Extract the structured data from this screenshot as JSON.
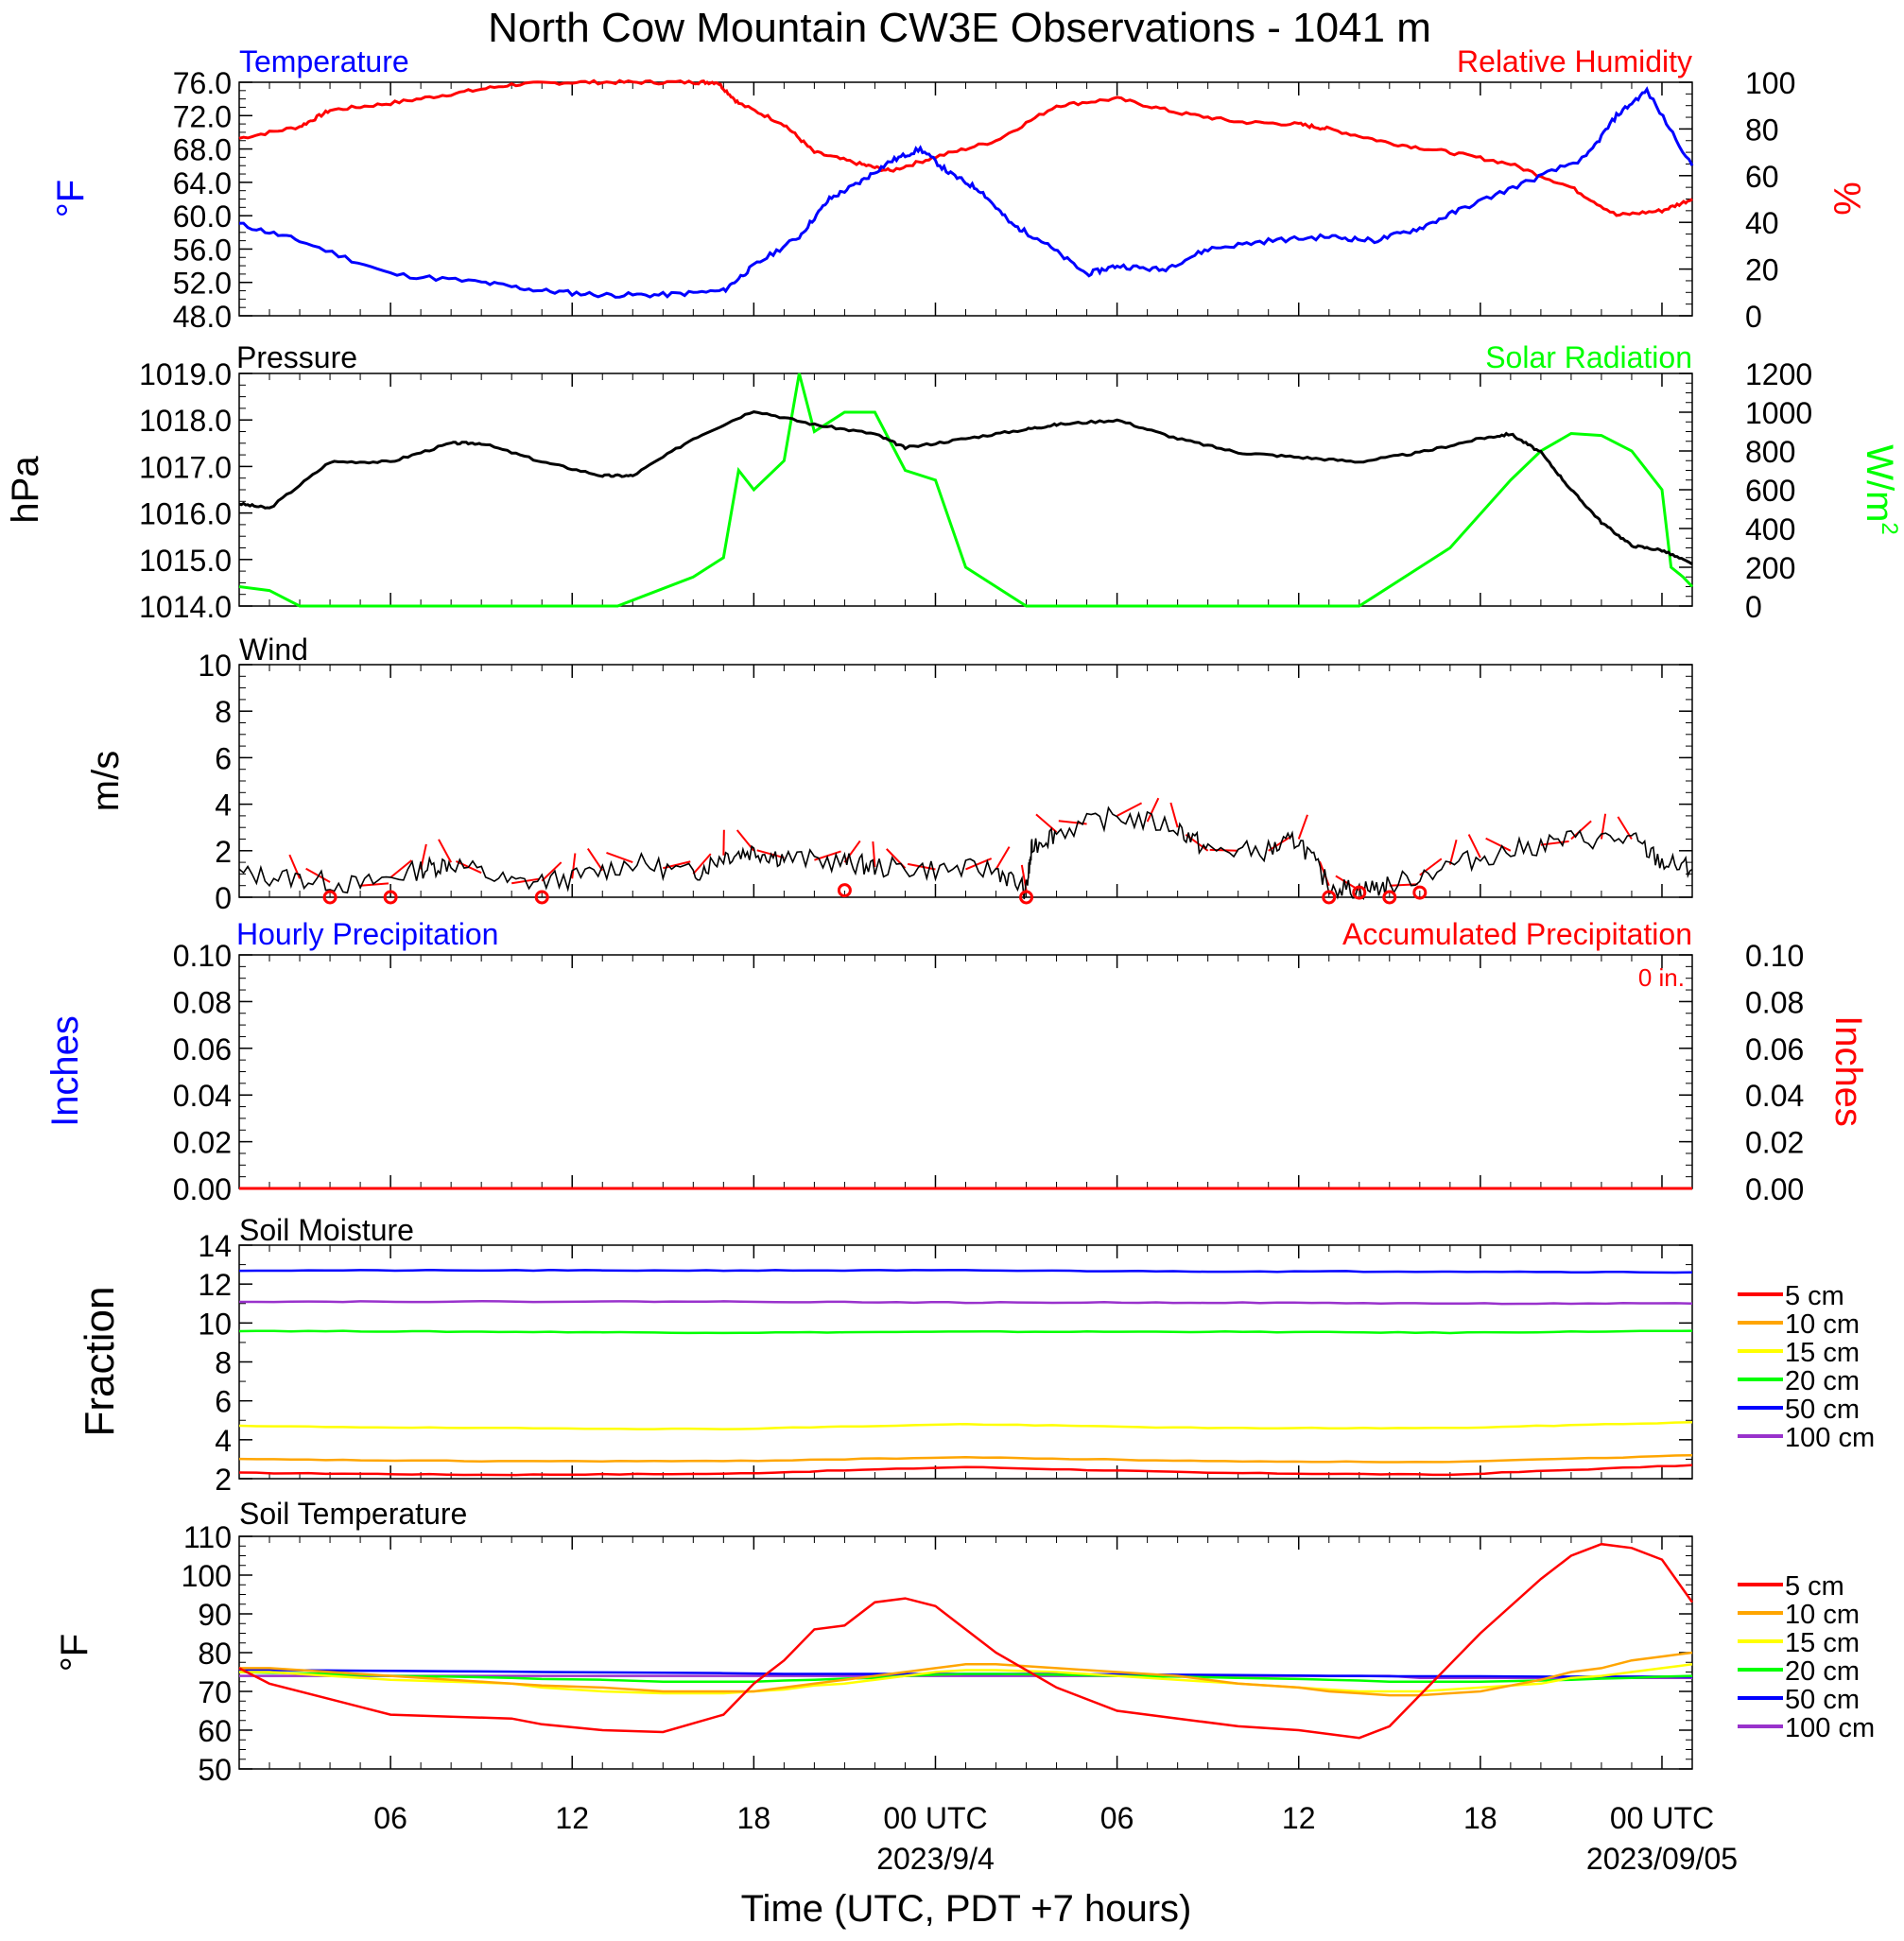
{
  "title": "North Cow Mountain CW3E Observations - 1041 m",
  "x_axis": {
    "label": "Time (UTC, PDT +7 hours)",
    "ticks": [
      "06",
      "12",
      "18",
      "00 UTC",
      "06",
      "12",
      "18",
      "00 UTC"
    ],
    "tick_hours": [
      6,
      12,
      18,
      24,
      30,
      36,
      42,
      48
    ],
    "dates": [
      "2023/9/4",
      "2023/09/05"
    ],
    "date_hours": [
      24,
      48
    ],
    "range_hours": [
      1,
      49
    ]
  },
  "panels": {
    "temp_rh": {
      "left_title": "Temperature",
      "right_title": "Relative Humidity",
      "left_unit": "°F",
      "right_unit": "%",
      "left_ticks": [
        "76.0",
        "72.0",
        "68.0",
        "64.0",
        "60.0",
        "56.0",
        "52.0",
        "48.0"
      ],
      "right_ticks": [
        "100",
        "80",
        "60",
        "40",
        "20",
        "0"
      ]
    },
    "pressure_solar": {
      "left_title": "Pressure",
      "right_title": "Solar Radiation",
      "left_unit": "hPa",
      "right_unit": "W/m",
      "right_unit_sup": "2",
      "left_ticks": [
        "1019.0",
        "1018.0",
        "1017.0",
        "1016.0",
        "1015.0",
        "1014.0"
      ],
      "right_ticks": [
        "1200",
        "1000",
        "800",
        "600",
        "400",
        "200",
        "0"
      ]
    },
    "wind": {
      "title": "Wind",
      "unit": "m/s",
      "ticks": [
        "10",
        "8",
        "6",
        "4",
        "2",
        "0"
      ]
    },
    "precip": {
      "left_title": "Hourly Precipitation",
      "right_title": "Accumulated Precipitation",
      "accum_label": "0 in.",
      "left_unit": "Inches",
      "right_unit": "Inches",
      "left_ticks": [
        "0.10",
        "0.08",
        "0.06",
        "0.04",
        "0.02",
        "0.00"
      ],
      "right_ticks": [
        "0.10",
        "0.08",
        "0.06",
        "0.04",
        "0.02",
        "0.00"
      ]
    },
    "soil_moisture": {
      "title": "Soil Moisture",
      "unit": "Fraction",
      "ticks": [
        "14",
        "12",
        "10",
        "8",
        "6",
        "4",
        "2"
      ],
      "legend": [
        "5 cm",
        "10 cm",
        "15 cm",
        "20 cm",
        "50 cm",
        "100 cm"
      ]
    },
    "soil_temp": {
      "title": "Soil Temperature",
      "unit": "°F",
      "ticks": [
        "110",
        "100",
        "90",
        "80",
        "70",
        "60",
        "50"
      ],
      "legend": [
        "5 cm",
        "10 cm",
        "15 cm",
        "20 cm",
        "50 cm",
        "100 cm"
      ]
    }
  },
  "colors": {
    "temperature": "#0000ff",
    "humidity": "#ff0000",
    "pressure": "#000000",
    "solar": "#00ff00",
    "wind_speed": "#000000",
    "wind_barb": "#ff0000",
    "hourly_precip": "#0000ff",
    "accum_precip": "#ff0000",
    "depth_5": "#ff0000",
    "depth_10": "#ffa500",
    "depth_15": "#ffff00",
    "depth_20": "#00ff00",
    "depth_50": "#0000ff",
    "depth_100": "#9932cc"
  },
  "chart_data": [
    {
      "type": "line",
      "name": "Temperature",
      "x_hours": [
        1,
        3,
        6,
        9,
        11,
        13,
        15,
        17,
        18,
        19.5,
        20.5,
        21.5,
        22.5,
        23.5,
        24.5,
        25.5,
        26.5,
        27.5,
        29,
        30,
        31.5,
        33,
        35,
        37,
        38.5,
        40,
        41.5,
        43.5,
        45.5,
        46.5,
        47.5,
        49
      ],
      "y": [
        59,
        57,
        53,
        52,
        51,
        50.5,
        50.5,
        51,
        54,
        57.5,
        62,
        64,
        66.5,
        68,
        65,
        63,
        59,
        57,
        53,
        54,
        53.5,
        56,
        57,
        57.5,
        57,
        58.5,
        61,
        64,
        67,
        72,
        75,
        66
      ],
      "ylim": [
        48,
        76
      ]
    },
    {
      "type": "line",
      "name": "Relative Humidity",
      "x_hours": [
        1,
        3,
        4,
        6,
        8,
        10,
        12,
        14,
        16,
        16.8,
        17.5,
        19,
        20,
        21.5,
        22.5,
        24,
        26,
        28,
        30,
        32,
        34,
        36,
        37,
        39,
        41,
        43,
        45,
        46.5,
        48,
        49
      ],
      "y": [
        76,
        81,
        88,
        91,
        95,
        99,
        100,
        100,
        100,
        100,
        91,
        82,
        70,
        65,
        62,
        68,
        75,
        90,
        93,
        87,
        83,
        82,
        80,
        74,
        70,
        65,
        55,
        43,
        45,
        50
      ],
      "ylim": [
        0,
        100
      ]
    },
    {
      "type": "line",
      "name": "Pressure",
      "x_hours": [
        1,
        2,
        4,
        6,
        8,
        9,
        11,
        13,
        14,
        16,
        18,
        20,
        22,
        23,
        25,
        27,
        28,
        30,
        32,
        34,
        36,
        38,
        40,
        42,
        43,
        44,
        45,
        46,
        47,
        48,
        49
      ],
      "y": [
        1016.2,
        1016.1,
        1017.1,
        1017.1,
        1017.5,
        1017.5,
        1017.1,
        1016.8,
        1016.8,
        1017.6,
        1018.2,
        1017.9,
        1017.7,
        1017.4,
        1017.6,
        1017.8,
        1017.9,
        1018.0,
        1017.6,
        1017.3,
        1017.2,
        1017.1,
        1017.3,
        1017.6,
        1017.7,
        1017.3,
        1016.5,
        1015.8,
        1015.3,
        1015.2,
        1014.9
      ],
      "ylim": [
        1014,
        1019
      ]
    },
    {
      "type": "line",
      "name": "Solar Radiation",
      "x_hours": [
        1,
        2,
        3,
        13.5,
        14.5,
        16,
        17,
        17.5,
        18,
        19,
        19.5,
        20,
        21,
        22,
        23,
        24,
        25,
        26,
        27,
        28.5,
        38,
        38.5,
        41,
        43,
        44,
        45,
        46,
        47,
        48,
        48.3,
        48.7,
        49
      ],
      "y": [
        100,
        80,
        0,
        0,
        60,
        150,
        250,
        700,
        600,
        750,
        1200,
        900,
        1000,
        1000,
        700,
        650,
        200,
        100,
        0,
        0,
        0,
        50,
        300,
        650,
        800,
        890,
        880,
        800,
        600,
        200,
        150,
        100
      ],
      "ylim": [
        0,
        1200
      ]
    },
    {
      "type": "line",
      "name": "Wind",
      "x_hours": [
        1,
        3,
        5,
        7,
        8,
        10,
        12,
        14,
        16,
        17,
        18,
        19,
        21,
        22,
        24,
        26,
        27,
        27.2,
        28,
        30,
        32,
        33,
        35,
        36,
        37,
        38,
        39,
        41,
        43,
        45,
        47,
        48,
        49
      ],
      "y": [
        1.0,
        0.8,
        0.5,
        1.2,
        1.5,
        0.6,
        0.8,
        1.5,
        1.0,
        1.8,
        2.0,
        1.7,
        1.5,
        1.3,
        1.2,
        1.2,
        0.3,
        2.2,
        2.8,
        3.5,
        3.0,
        2.0,
        2.0,
        2.5,
        0.5,
        0.3,
        0.5,
        1.4,
        2.0,
        2.5,
        2.5,
        1.5,
        1.2
      ],
      "ylim": [
        0,
        10
      ]
    },
    {
      "type": "scatter",
      "name": "Calm wind markers",
      "x_hours": [
        4,
        6,
        11,
        21,
        27,
        37,
        38,
        39,
        40
      ],
      "y": [
        0,
        0,
        0,
        0.3,
        0,
        0,
        0.2,
        0,
        0.2
      ],
      "ylim": [
        0,
        10
      ]
    },
    {
      "type": "bar",
      "name": "Hourly Precipitation",
      "x_hours": [
        1,
        49
      ],
      "y": [
        0,
        0
      ],
      "ylim": [
        0,
        0.1
      ]
    },
    {
      "type": "line",
      "name": "Accumulated Precipitation",
      "x_hours": [
        1,
        49
      ],
      "y": [
        0,
        0
      ],
      "ylim": [
        0,
        0.1
      ]
    },
    {
      "type": "line",
      "name": "Soil Moisture",
      "x_hours": [
        1,
        9,
        17,
        25,
        33,
        41,
        49
      ],
      "series": [
        {
          "name": "5 cm",
          "values": [
            2.3,
            2.2,
            2.25,
            2.6,
            2.3,
            2.2,
            2.7
          ]
        },
        {
          "name": "10 cm",
          "values": [
            3.0,
            2.9,
            2.9,
            3.1,
            2.9,
            2.85,
            3.2
          ]
        },
        {
          "name": "15 cm",
          "values": [
            4.7,
            4.6,
            4.55,
            4.8,
            4.6,
            4.6,
            4.9
          ]
        },
        {
          "name": "20 cm",
          "values": [
            9.6,
            9.55,
            9.5,
            9.55,
            9.55,
            9.5,
            9.6
          ]
        },
        {
          "name": "50 cm",
          "values": [
            12.7,
            12.7,
            12.7,
            12.7,
            12.65,
            12.65,
            12.6
          ]
        },
        {
          "name": "100 cm",
          "values": [
            11.1,
            11.1,
            11.1,
            11.05,
            11.05,
            11.0,
            11.0
          ]
        }
      ],
      "ylim": [
        2,
        14
      ]
    },
    {
      "type": "line",
      "name": "Soil Temperature",
      "x_hours": [
        1,
        2,
        4,
        6,
        8,
        10,
        11,
        13,
        15,
        17,
        18,
        19,
        20,
        21,
        22,
        23,
        24,
        25,
        26,
        28,
        30,
        32,
        34,
        36,
        37,
        38,
        39,
        40,
        42,
        44,
        45,
        46,
        47,
        48,
        49
      ],
      "series": [
        {
          "name": "5 cm",
          "values": [
            76,
            72,
            68,
            64,
            63.5,
            63,
            61.5,
            60,
            59.5,
            64,
            72,
            78,
            86,
            87,
            93,
            94,
            92,
            86,
            80,
            71,
            65,
            63,
            61,
            60,
            59,
            58,
            61,
            69,
            85,
            99,
            105,
            108,
            107,
            104,
            93
          ]
        },
        {
          "name": "10 cm",
          "values": [
            76,
            76,
            75,
            74,
            73,
            72,
            71.5,
            71,
            70,
            70,
            70,
            71,
            72,
            73,
            74,
            75,
            76,
            77,
            77,
            76,
            75,
            74,
            72,
            71,
            70,
            69.5,
            69,
            69,
            70,
            73,
            75,
            76,
            78,
            79,
            80
          ]
        },
        {
          "name": "15 cm",
          "values": [
            75,
            75,
            74,
            73,
            72.5,
            72,
            71,
            70,
            69.5,
            69.5,
            70,
            70.5,
            71.5,
            72,
            73,
            74,
            75,
            75.5,
            75.5,
            75,
            74,
            73,
            72,
            71,
            70.5,
            70,
            70,
            70,
            71,
            72,
            73.5,
            74,
            75,
            76,
            77
          ]
        },
        {
          "name": "20 cm",
          "values": [
            75,
            74.8,
            74.5,
            74,
            73.8,
            73.5,
            73.2,
            73,
            72.5,
            72.5,
            72.5,
            72.8,
            73,
            73.3,
            73.5,
            74,
            74.3,
            74.5,
            74.5,
            74.3,
            74,
            73.8,
            73.5,
            73.2,
            73,
            72.8,
            72.5,
            72.5,
            72.5,
            72.8,
            73,
            73.3,
            73.5,
            73.8,
            74
          ]
        },
        {
          "name": "50 cm",
          "values": [
            75.5,
            75.5,
            75.4,
            75.3,
            75.2,
            75.1,
            75.0,
            74.9,
            74.8,
            74.7,
            74.6,
            74.5,
            74.5,
            74.5,
            74.5,
            74.5,
            74.5,
            74.5,
            74.5,
            74.5,
            74.4,
            74.3,
            74.2,
            74.1,
            74.0,
            74.0,
            73.9,
            73.9,
            73.9,
            73.8,
            73.8,
            73.8,
            73.8,
            73.8,
            73.8
          ]
        },
        {
          "name": "100 cm",
          "values": [
            74,
            74,
            74,
            74,
            74,
            74,
            74,
            74,
            74,
            74,
            74,
            74,
            74,
            74,
            74,
            74,
            74,
            74,
            74,
            74,
            74,
            74,
            74,
            74,
            74,
            74,
            74,
            73.5,
            73.5,
            73.5,
            73.5,
            73.5,
            73.5,
            73.5,
            73.5
          ]
        }
      ],
      "ylim": [
        50,
        110
      ]
    }
  ]
}
